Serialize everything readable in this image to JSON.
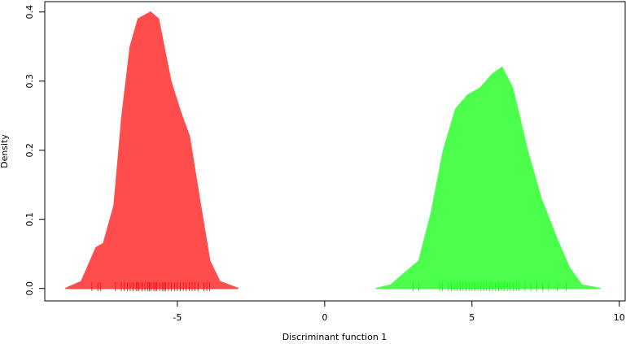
{
  "chart_data": {
    "type": "density",
    "xlabel": "Discriminant function 1",
    "ylabel": "Density",
    "xlim": [
      -9.5,
      10.2
    ],
    "ylim": [
      -0.018,
      0.415
    ],
    "xticks": [
      -5,
      0,
      5,
      10
    ],
    "yticks": [
      {
        "value": 0,
        "label": "0.0"
      },
      0.1,
      0.2,
      0.3,
      0.4
    ],
    "series": [
      {
        "color": "#ff4d4d",
        "x": [
          -8.8,
          -8.26,
          -7.76,
          -7.51,
          -7.15,
          -6.88,
          -6.6,
          -6.33,
          -5.91,
          -5.64,
          -5.22,
          -4.89,
          -4.59,
          -4.25,
          -3.9,
          -3.56,
          -2.93
        ],
        "y": [
          0,
          0.01,
          0.059,
          0.065,
          0.12,
          0.25,
          0.35,
          0.39,
          0.4,
          0.39,
          0.3,
          0.255,
          0.22,
          0.13,
          0.04,
          0.01,
          0
        ],
        "rug": [
          -7.9,
          -7.7,
          -7.6,
          -7.1,
          -6.9,
          -6.8,
          -6.7,
          -6.6,
          -6.5,
          -6.4,
          -6.35,
          -6.3,
          -6.2,
          -6.1,
          -6.0,
          -5.95,
          -5.9,
          -5.8,
          -5.75,
          -5.7,
          -5.6,
          -5.5,
          -5.45,
          -5.4,
          -5.3,
          -5.2,
          -5.1,
          -5.0,
          -4.9,
          -4.8,
          -4.7,
          -4.6,
          -4.5,
          -4.4,
          -4.3,
          -4.1,
          -4.0,
          -3.9
        ]
      },
      {
        "color": "#4dff4d",
        "x": [
          1.74,
          2.24,
          2.65,
          3.2,
          3.62,
          4.03,
          4.45,
          4.86,
          5.28,
          5.69,
          6.02,
          6.38,
          6.88,
          7.35,
          7.9,
          8.31,
          8.73,
          9.36
        ],
        "y": [
          0,
          0.005,
          0.02,
          0.04,
          0.11,
          0.2,
          0.26,
          0.28,
          0.29,
          0.31,
          0.32,
          0.29,
          0.2,
          0.13,
          0.07,
          0.03,
          0.005,
          0
        ],
        "rug": [
          3.0,
          3.2,
          3.9,
          4.0,
          4.2,
          4.3,
          4.4,
          4.5,
          4.6,
          4.7,
          4.8,
          4.9,
          5.0,
          5.1,
          5.2,
          5.3,
          5.4,
          5.5,
          5.6,
          5.7,
          5.8,
          5.9,
          6.0,
          6.1,
          6.2,
          6.3,
          6.4,
          6.5,
          6.6,
          6.8,
          7.0,
          7.2,
          7.4,
          7.6,
          7.9,
          8.2
        ]
      }
    ]
  }
}
